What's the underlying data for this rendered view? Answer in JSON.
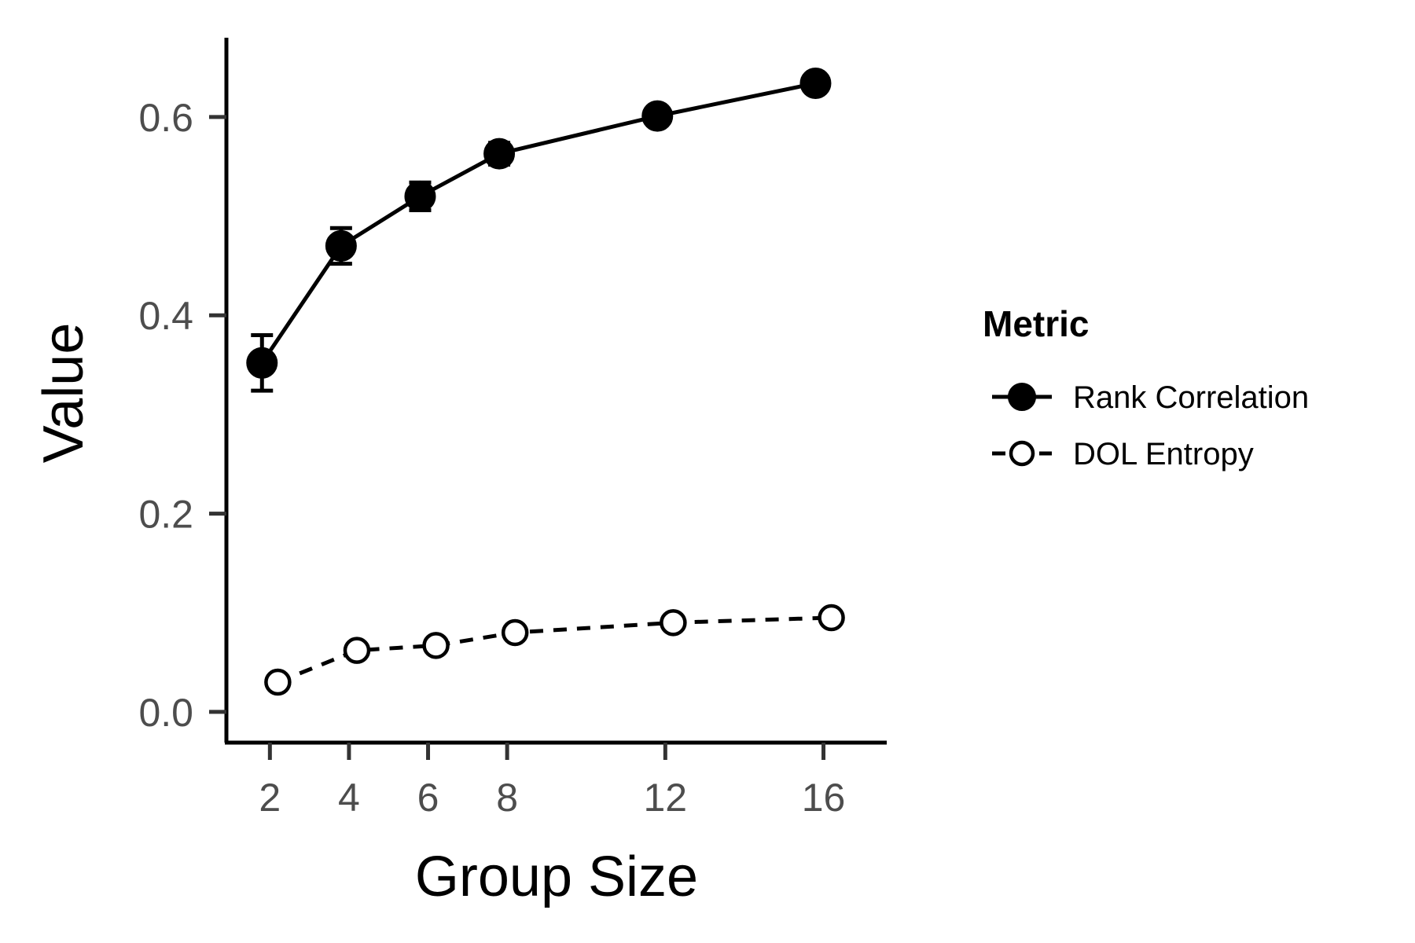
{
  "chart_data": {
    "type": "line",
    "title": "",
    "xlabel": "Group Size",
    "ylabel": "Value",
    "x_ticks": [
      2,
      4,
      6,
      8,
      12,
      16
    ],
    "y_ticks": [
      "0.0",
      "0.2",
      "0.4",
      "0.6"
    ],
    "xlim": [
      0.9,
      17.6
    ],
    "ylim": [
      -0.031,
      0.68
    ],
    "grid": false,
    "legend": {
      "title": "Metric",
      "placement": "right"
    },
    "series": [
      {
        "name": "Rank Correlation",
        "marker": "filled-circle",
        "line": "solid",
        "color": "#000000",
        "x": [
          1.8,
          3.8,
          5.8,
          7.8,
          11.8,
          15.8
        ],
        "values": [
          0.352,
          0.47,
          0.52,
          0.563,
          0.601,
          0.634
        ],
        "error": [
          0.028,
          0.018,
          0.014,
          0.011,
          0.009,
          0.007
        ]
      },
      {
        "name": "DOL Entropy",
        "marker": "open-circle",
        "line": "dashed",
        "color": "#000000",
        "x": [
          2.2,
          4.2,
          6.2,
          8.2,
          12.2,
          16.2
        ],
        "values": [
          0.03,
          0.062,
          0.067,
          0.08,
          0.09,
          0.095
        ],
        "error": [
          0.003,
          0.002,
          0.002,
          0.002,
          0.002,
          0.002
        ]
      }
    ]
  }
}
